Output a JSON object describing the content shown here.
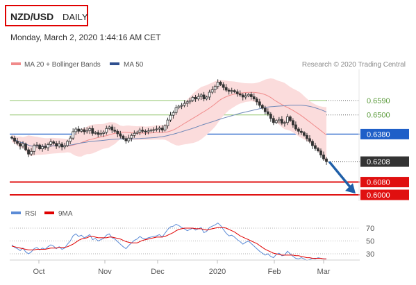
{
  "header": {
    "symbol": "NZD/USD",
    "timeframe": "DAILY",
    "datetime": "Monday, March 2, 2020 1:44:16 AM CET"
  },
  "legend": {
    "ma20_label": "MA 20 + Bollinger Bands",
    "ma50_label": "MA 50",
    "credit": "Research © 2020 Trading Central",
    "rsi_label": "RSI",
    "rsi_ma_label": "9MA"
  },
  "colors": {
    "candle": "#333333",
    "bollinger_fill": "#fbdcdc",
    "ma20": "#f08a8a",
    "ma50": "#6f88b8",
    "resistance_green": "#8fc46a",
    "pivot_blue": "#1f5fc8",
    "support_red": "#e01010",
    "rsi": "#5b8bd6",
    "rsi_ma": "#e00000",
    "arrow": "#1f5fa8",
    "current_price_bg": "#333333"
  },
  "chart_data": {
    "type": "candlestick",
    "x_tick_labels": [
      "Oct",
      "Nov",
      "Dec",
      "2020",
      "Feb",
      "Mar"
    ],
    "y_levels": [
      {
        "value": 0.659,
        "label": "0.6590",
        "kind": "resistance",
        "color": "#8fc46a"
      },
      {
        "value": 0.65,
        "label": "0.6500",
        "kind": "resistance",
        "color": "#8fc46a"
      },
      {
        "value": 0.638,
        "label": "0.6380",
        "kind": "pivot",
        "color": "#1f5fc8"
      },
      {
        "value": 0.6208,
        "label": "0.6208",
        "kind": "current",
        "color": "#333333"
      },
      {
        "value": 0.608,
        "label": "0.6080",
        "kind": "support",
        "color": "#e01010"
      },
      {
        "value": 0.6,
        "label": "0.6000",
        "kind": "support",
        "color": "#e01010"
      }
    ],
    "close_series": [
      0.6355,
      0.6335,
      0.6322,
      0.6305,
      0.6318,
      0.6282,
      0.6255,
      0.6272,
      0.6308,
      0.6312,
      0.6288,
      0.6302,
      0.6295,
      0.6315,
      0.6332,
      0.6322,
      0.6305,
      0.6318,
      0.63,
      0.6308,
      0.6335,
      0.6355,
      0.6395,
      0.6412,
      0.6398,
      0.6408,
      0.6395,
      0.6402,
      0.6415,
      0.6385,
      0.639,
      0.6378,
      0.6384,
      0.6392,
      0.6415,
      0.6425,
      0.6405,
      0.6398,
      0.6382,
      0.6368,
      0.6352,
      0.6338,
      0.6355,
      0.6372,
      0.6385,
      0.6392,
      0.6405,
      0.6398,
      0.6394,
      0.64,
      0.6405,
      0.6408,
      0.6412,
      0.6418,
      0.6405,
      0.6432,
      0.6468,
      0.6498,
      0.6515,
      0.6545,
      0.6555,
      0.656,
      0.6572,
      0.6582,
      0.659,
      0.661,
      0.66,
      0.6615,
      0.6625,
      0.66,
      0.6612,
      0.6642,
      0.6658,
      0.6678,
      0.6705,
      0.669,
      0.6672,
      0.6655,
      0.6648,
      0.6652,
      0.6645,
      0.6632,
      0.6625,
      0.6612,
      0.662,
      0.6628,
      0.6614,
      0.66,
      0.6582,
      0.656,
      0.6542,
      0.652,
      0.6505,
      0.6478,
      0.6452,
      0.6465,
      0.6472,
      0.6448,
      0.6452,
      0.6488,
      0.6465,
      0.6438,
      0.6412,
      0.6398,
      0.639,
      0.6372,
      0.6352,
      0.6335,
      0.6308,
      0.629,
      0.6275,
      0.625,
      0.6225,
      0.6208
    ],
    "rsi_scale": [
      70,
      50,
      30
    ],
    "rsi_series": [
      44,
      40,
      38,
      35,
      39,
      33,
      30,
      33,
      38,
      40,
      36,
      39,
      37,
      41,
      44,
      42,
      38,
      41,
      37,
      39,
      45,
      50,
      58,
      61,
      57,
      59,
      55,
      57,
      60,
      52,
      54,
      50,
      52,
      54,
      59,
      61,
      55,
      53,
      49,
      45,
      41,
      38,
      43,
      47,
      51,
      53,
      57,
      54,
      53,
      55,
      56,
      57,
      58,
      60,
      56,
      62,
      68,
      72,
      73,
      76,
      74,
      71,
      69,
      66,
      68,
      70,
      67,
      69,
      71,
      63,
      65,
      71,
      73,
      75,
      78,
      74,
      68,
      62,
      58,
      59,
      56,
      52,
      49,
      45,
      48,
      50,
      46,
      42,
      38,
      34,
      31,
      28,
      30,
      26,
      24,
      29,
      31,
      27,
      28,
      34,
      30,
      26,
      23,
      22,
      24,
      22,
      20,
      21,
      23,
      22,
      24,
      23,
      22,
      22
    ],
    "rsi_ma_series": [
      42,
      41,
      40,
      39,
      38,
      37,
      36,
      36,
      36,
      37,
      37,
      37,
      37,
      38,
      39,
      39,
      39,
      40,
      40,
      40,
      41,
      43,
      45,
      48,
      51,
      53,
      54,
      55,
      57,
      57,
      56,
      55,
      55,
      55,
      55,
      56,
      56,
      55,
      54,
      53,
      51,
      49,
      48,
      47,
      47,
      47,
      49,
      51,
      52,
      53,
      54,
      55,
      56,
      56,
      56,
      57,
      59,
      61,
      63,
      66,
      68,
      69,
      70,
      70,
      70,
      70,
      69,
      69,
      69,
      68,
      67,
      68,
      69,
      70,
      71,
      71,
      71,
      70,
      68,
      66,
      64,
      61,
      58,
      56,
      54,
      52,
      50,
      48,
      46,
      43,
      40,
      37,
      35,
      33,
      31,
      30,
      29,
      28,
      28,
      28,
      28,
      28,
      27,
      27,
      26,
      25,
      24,
      24,
      23,
      23,
      23,
      23,
      22,
      22
    ]
  }
}
